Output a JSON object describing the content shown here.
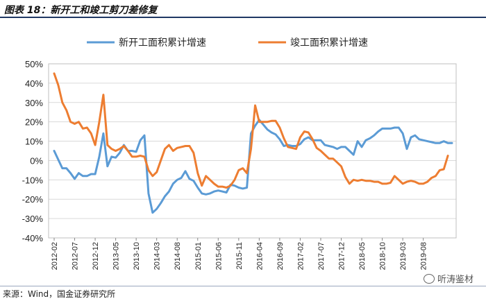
{
  "figure": {
    "title": "图表 18：新开工和竣工剪刀差修复",
    "source": "来源：Wind，国金证券研究所",
    "watermark": "听涛鉴材"
  },
  "colors": {
    "blue": "#5b9bd5",
    "orange": "#ed7d31",
    "grid": "#d9d9d9"
  },
  "chart_data": {
    "type": "line",
    "title": "",
    "xlabel": "",
    "ylabel": "",
    "ylim": [
      -40,
      50
    ],
    "yticks": [
      50,
      40,
      30,
      20,
      10,
      0,
      -10,
      -20,
      -30,
      -40
    ],
    "ytick_labels": [
      "50%",
      "40%",
      "30%",
      "20%",
      "10%",
      "0%",
      "-10%",
      "-20%",
      "-30%",
      "-40%"
    ],
    "x_start": "2012-02",
    "x_end": "2019-12",
    "x_tick_labels": [
      "2012-02",
      "2012-07",
      "2012-12",
      "2013-05",
      "2013-10",
      "2014-03",
      "2014-08",
      "2015-01",
      "2015-06",
      "2015-11",
      "2016-04",
      "2016-09",
      "2017-02",
      "2017-07",
      "2017-12",
      "2018-05",
      "2018-10",
      "2019-03",
      "2019-08"
    ],
    "legend_position": "top",
    "series": [
      {
        "name": "新开工面积累计增速",
        "color": "#5b9bd5",
        "values": [
          5,
          0.5,
          -4,
          -4,
          -6.5,
          -9.5,
          -6.5,
          -8,
          -8,
          -7,
          -7,
          2,
          14,
          -3,
          2,
          1.5,
          4,
          8,
          5,
          5,
          4.5,
          10.5,
          13,
          -17,
          -27,
          -25,
          -22,
          -18.5,
          -16,
          -12,
          -10,
          -9,
          -5.5,
          -9.5,
          -10.5,
          -14,
          -17,
          -17.5,
          -17,
          -16,
          -15.5,
          -16,
          -16.5,
          -12.5,
          -13,
          -14,
          -14.5,
          -14,
          14,
          18,
          21,
          18.5,
          16,
          14.5,
          13.5,
          11,
          7.5,
          8,
          7.5,
          7.5,
          8.5,
          11,
          12,
          10.5,
          10.5,
          10.5,
          8,
          7.5,
          7,
          6,
          7,
          7,
          5,
          3,
          10,
          7,
          10.5,
          11.5,
          13,
          15,
          16.5,
          16.5,
          16.5,
          17,
          17,
          14,
          6,
          12,
          13,
          11,
          10.5,
          10,
          9.5,
          9,
          9,
          10,
          9,
          9
        ]
      },
      {
        "name": "竣工面积累计增速",
        "color": "#ed7d31",
        "values": [
          45,
          39,
          30,
          26,
          20,
          19,
          20,
          16.5,
          17,
          14,
          8,
          20,
          34,
          8,
          6,
          5,
          6,
          7.5,
          5,
          2,
          2,
          2.5,
          2,
          -5,
          -8,
          -6,
          0,
          6,
          8,
          5,
          6.5,
          7,
          7.5,
          7.5,
          4,
          -6.5,
          -13,
          -8,
          -10,
          -12,
          -13.5,
          -13.5,
          -14,
          -13,
          -10,
          -5,
          -4,
          -6.5,
          6,
          28.5,
          20,
          20,
          20,
          20.5,
          20.5,
          17,
          11.5,
          7,
          6.5,
          6,
          12,
          15,
          14.5,
          11,
          6.5,
          5,
          3,
          1,
          1,
          -1,
          -3,
          -8.5,
          -12,
          -10,
          -10.5,
          -10,
          -10.5,
          -10.5,
          -11,
          -11,
          -12,
          -12,
          -11.5,
          -8,
          -10,
          -12,
          -11,
          -10.5,
          -11,
          -12,
          -12,
          -11,
          -9,
          -8,
          -5,
          -4.5,
          2.5
        ]
      }
    ]
  }
}
